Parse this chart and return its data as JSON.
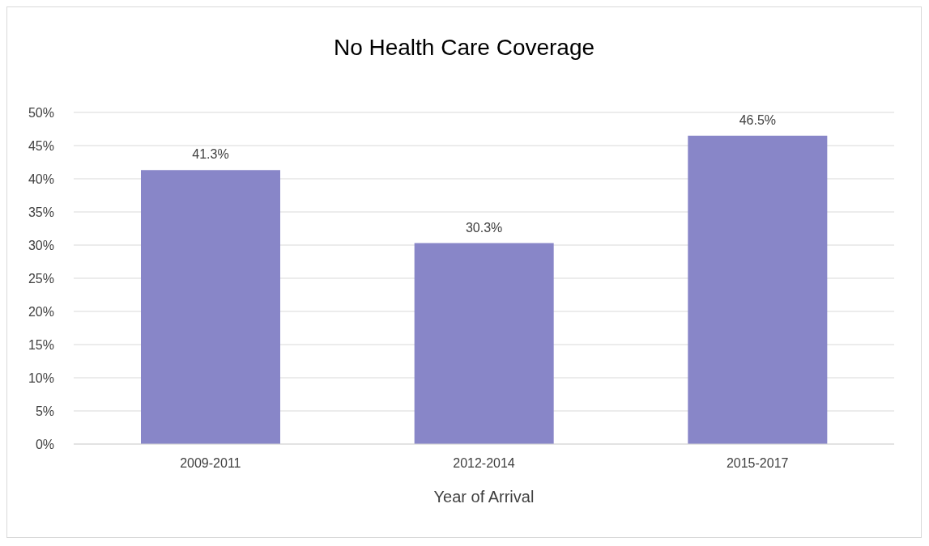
{
  "chart_data": {
    "type": "bar",
    "title": "No Health Care Coverage",
    "xlabel": "Year of Arrival",
    "categories": [
      "2009-2011",
      "2012-2014",
      "2015-2017"
    ],
    "values": [
      41.3,
      30.3,
      46.5
    ],
    "color": "#8886c8",
    "value_labels": [
      "41.3%",
      "30.3%",
      "46.5%"
    ],
    "ylim": [
      0,
      50
    ],
    "yticks": [
      {
        "value": 0,
        "label": "0%"
      },
      {
        "value": 5,
        "label": "5%"
      },
      {
        "value": 10,
        "label": "10%"
      },
      {
        "value": 15,
        "label": "15%"
      },
      {
        "value": 20,
        "label": "20%"
      },
      {
        "value": 25,
        "label": "25%"
      },
      {
        "value": 30,
        "label": "30%"
      },
      {
        "value": 35,
        "label": "35%"
      },
      {
        "value": 40,
        "label": "40%"
      },
      {
        "value": 45,
        "label": "45%"
      },
      {
        "value": 50,
        "label": "50%"
      }
    ],
    "grid": "y",
    "legend": false
  }
}
